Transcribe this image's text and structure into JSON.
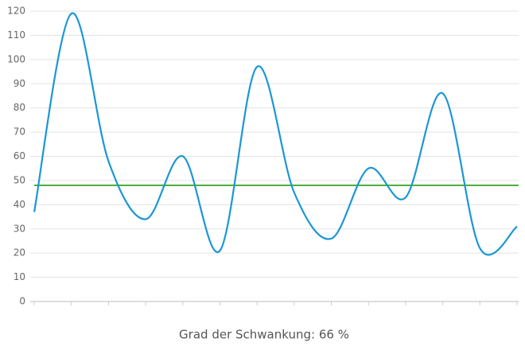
{
  "chart_data": {
    "type": "line",
    "categories": [
      null,
      null,
      null,
      null,
      null,
      null,
      null,
      null,
      null,
      null,
      null,
      null,
      null,
      null
    ],
    "series": [
      {
        "color": "#1a97d6",
        "values": [
          37,
          119,
          58,
          34,
          60,
          21,
          97,
          45,
          26,
          55,
          43,
          86,
          22,
          31
        ]
      }
    ],
    "reference": {
      "value": 48,
      "color": "#4caf3a"
    },
    "ylim": [
      0,
      120
    ],
    "yticks": [
      0,
      10,
      20,
      30,
      40,
      50,
      60,
      70,
      80,
      90,
      100,
      110,
      120
    ],
    "grid": true,
    "caption": "Grad der Schwankung: 66 %"
  }
}
